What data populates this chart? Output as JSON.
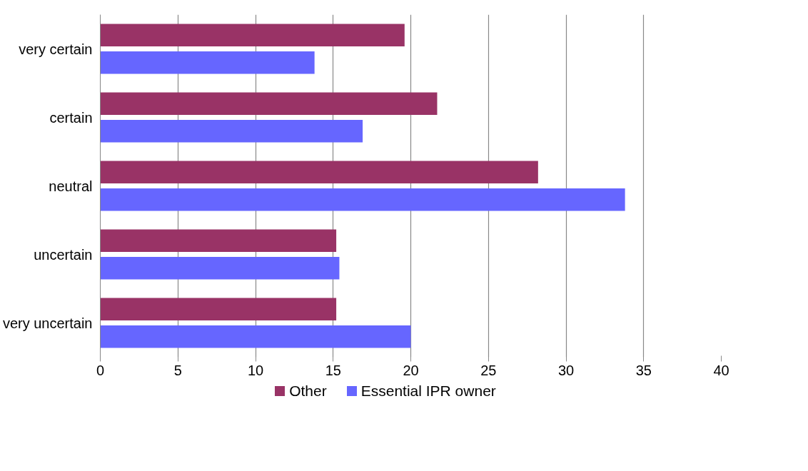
{
  "chart_data": {
    "type": "bar",
    "orientation": "horizontal",
    "categories": [
      "very certain",
      "certain",
      "neutral",
      "uncertain",
      "very uncertain"
    ],
    "series": [
      {
        "name": "Other",
        "color": "#993366",
        "values": [
          19.6,
          21.7,
          28.2,
          15.2,
          15.2
        ]
      },
      {
        "name": "Essential IPR owner",
        "color": "#6666ff",
        "values": [
          13.8,
          16.9,
          33.8,
          15.4,
          20.0
        ]
      }
    ],
    "xlim": [
      0,
      40
    ],
    "xticks": [
      0,
      5,
      10,
      15,
      20,
      25,
      30,
      35,
      40
    ],
    "grid": "x",
    "legend": "bottom"
  }
}
